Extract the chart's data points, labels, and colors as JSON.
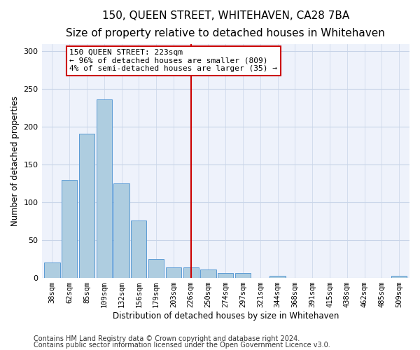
{
  "title": "150, QUEEN STREET, WHITEHAVEN, CA28 7BA",
  "subtitle": "Size of property relative to detached houses in Whitehaven",
  "xlabel": "Distribution of detached houses by size in Whitehaven",
  "ylabel": "Number of detached properties",
  "categories": [
    "38sqm",
    "62sqm",
    "85sqm",
    "109sqm",
    "132sqm",
    "156sqm",
    "179sqm",
    "203sqm",
    "226sqm",
    "250sqm",
    "274sqm",
    "297sqm",
    "321sqm",
    "344sqm",
    "368sqm",
    "391sqm",
    "415sqm",
    "438sqm",
    "462sqm",
    "485sqm",
    "509sqm"
  ],
  "values": [
    20,
    130,
    191,
    236,
    125,
    76,
    25,
    14,
    14,
    11,
    6,
    6,
    0,
    2,
    0,
    0,
    0,
    0,
    0,
    0,
    2
  ],
  "bar_color": "#aecde0",
  "bar_edge_color": "#5b9bd5",
  "vline_color": "#cc0000",
  "box_edge_color": "#cc0000",
  "reference_line_label": "150 QUEEN STREET: 223sqm",
  "annotation_line1": "← 96% of detached houses are smaller (809)",
  "annotation_line2": "4% of semi-detached houses are larger (35) →",
  "ylim": [
    0,
    310
  ],
  "yticks": [
    0,
    50,
    100,
    150,
    200,
    250,
    300
  ],
  "footer_line1": "Contains HM Land Registry data © Crown copyright and database right 2024.",
  "footer_line2": "Contains public sector information licensed under the Open Government Licence v3.0.",
  "bg_color": "#eef2fb",
  "grid_color": "#c8d4e8",
  "title_fontsize": 11,
  "subtitle_fontsize": 9.5,
  "axis_label_fontsize": 8.5,
  "tick_fontsize": 7.5,
  "annotation_fontsize": 8,
  "footer_fontsize": 7
}
